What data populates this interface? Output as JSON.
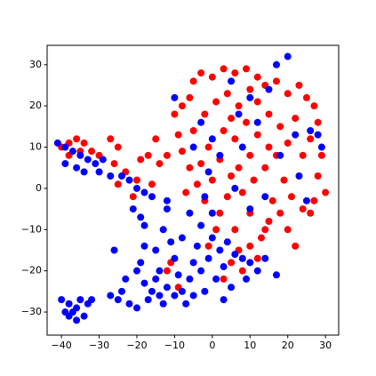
{
  "chart_data": {
    "type": "scatter",
    "xlim": [
      -43.8,
      33.5
    ],
    "ylim": [
      -35.6,
      34.7
    ],
    "xticks": [
      {
        "value": -40,
        "label": "−40"
      },
      {
        "value": -30,
        "label": "−30"
      },
      {
        "value": -20,
        "label": "−20"
      },
      {
        "value": -10,
        "label": "−10"
      },
      0,
      10,
      20,
      30
    ],
    "yticks": [
      {
        "value": -30,
        "label": "−30"
      },
      {
        "value": -20,
        "label": "−20"
      },
      {
        "value": -10,
        "label": "−10"
      },
      0,
      10,
      20,
      30
    ],
    "series": [
      {
        "color": "#ff0000",
        "x": [
          -40,
          -38,
          -36,
          -34,
          -32,
          -30,
          -38,
          -35,
          -27,
          -25,
          -26,
          -23,
          -25,
          -20,
          -19,
          -17,
          -15,
          -14,
          -12,
          -16,
          -21,
          -12,
          -11,
          -9,
          -10,
          -8,
          -6,
          -5,
          -3,
          0,
          3,
          6,
          9,
          12,
          14,
          17,
          20,
          23,
          25,
          27,
          28,
          26,
          29,
          28,
          30,
          27,
          24,
          21,
          18,
          15,
          13,
          10,
          7,
          5,
          3,
          8,
          12,
          14,
          6,
          2,
          -2,
          -4,
          -6,
          -8,
          -9,
          -5,
          -2,
          1,
          4,
          7,
          10,
          12,
          15,
          18,
          20,
          17,
          14,
          11,
          8,
          5,
          2,
          -1,
          3,
          6,
          9,
          12,
          15,
          22,
          24,
          19,
          16,
          10,
          4,
          0,
          -3,
          1,
          -1,
          20,
          22,
          26,
          10,
          7,
          5,
          -7
        ],
        "values": [
          10,
          11,
          12,
          11,
          9,
          8,
          8,
          9,
          12,
          10,
          6,
          4,
          1,
          2,
          7,
          8,
          12,
          6,
          8,
          1,
          -2,
          -20,
          -18,
          -24,
          18,
          20,
          22,
          26,
          28,
          27,
          29,
          28,
          29,
          27,
          25,
          26,
          23,
          25,
          22,
          20,
          16,
          12,
          8,
          3,
          -1,
          -3,
          -5,
          -2,
          -6,
          -8,
          -12,
          -14,
          -15,
          -18,
          -22,
          -20,
          -17,
          -10,
          -10,
          -6,
          -3,
          1,
          5,
          9,
          13,
          14,
          18,
          21,
          23,
          20,
          24,
          21,
          18,
          15,
          11,
          8,
          5,
          2,
          -1,
          3,
          7,
          10,
          14,
          12,
          16,
          13,
          10,
          17,
          8,
          2,
          -3,
          -6,
          -2,
          2,
          6,
          -10,
          -14,
          -10,
          -14,
          -6,
          8,
          5,
          17,
          -1
        ]
      },
      {
        "color": "#0000ff",
        "x": [
          -41,
          -39,
          -37,
          -35,
          -33,
          -31,
          -29,
          -39,
          -36,
          -34,
          -30,
          -27,
          -24,
          -22,
          -20,
          -18,
          -16,
          -21,
          -19,
          -18,
          -40,
          -38,
          -37,
          -36,
          -35,
          -34,
          -38,
          -33,
          -36,
          -39,
          -32,
          -27,
          -25,
          -24,
          -20,
          -19,
          -18,
          -17,
          -16,
          -15,
          -14,
          -13,
          -12,
          -20,
          -22,
          -18,
          -13,
          -12,
          -11,
          -10,
          -9,
          -8,
          -7,
          -6,
          -5,
          -4,
          -3,
          -2,
          -1,
          0,
          1,
          2,
          3,
          4,
          5,
          6,
          8,
          9,
          10,
          12,
          14,
          17,
          -15,
          -8,
          -6,
          -3,
          0,
          -14,
          -10,
          -5,
          3,
          -26,
          -23,
          -10,
          -3,
          0,
          5,
          10,
          17,
          20,
          22,
          26,
          28,
          29,
          25,
          23,
          18,
          14,
          10,
          6,
          -1,
          -5,
          -12,
          2,
          8,
          12,
          -2,
          15,
          7
        ],
        "values": [
          11,
          10,
          9,
          8,
          7,
          6,
          7,
          6,
          5,
          4,
          4,
          3,
          3,
          2,
          0,
          -1,
          -2,
          -5,
          -7,
          -9,
          -27,
          -28,
          -30,
          -29,
          -27,
          -31,
          -31,
          -28,
          -32,
          -30,
          -27,
          -26,
          -27,
          -25,
          -20,
          -18,
          -23,
          -27,
          -25,
          -22,
          -26,
          -28,
          -24,
          -29,
          -28,
          -14,
          -10,
          -5,
          -13,
          -17,
          -21,
          -25,
          -28,
          -22,
          -18,
          -14,
          -20,
          -25,
          -17,
          -12,
          -22,
          -15,
          -19,
          -13,
          -24,
          -16,
          -17,
          -22,
          -18,
          -20,
          -17,
          -21,
          -15,
          -12,
          -6,
          -9,
          -6,
          -20,
          -26,
          -26,
          -27,
          -15,
          -22,
          22,
          16,
          12,
          26,
          22,
          30,
          32,
          13,
          14,
          13,
          10,
          -3,
          3,
          8,
          -2,
          -5,
          0,
          4,
          10,
          -3,
          8,
          10,
          16,
          -2,
          24,
          18
        ]
      }
    ]
  }
}
